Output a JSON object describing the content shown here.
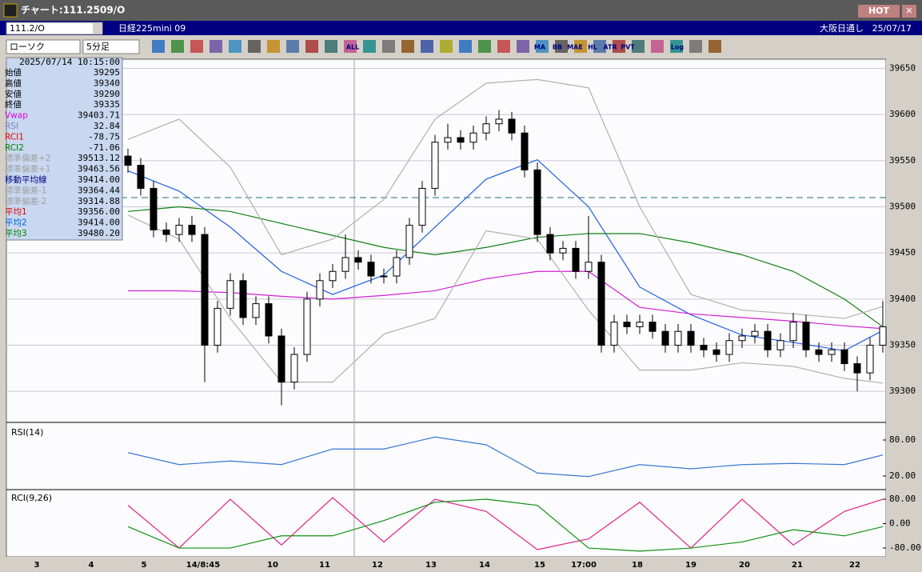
{
  "window": {
    "title": "チャート:111.2509/O",
    "hot": "HOT",
    "symbol": "111.2/O",
    "instrument": "日経225mini 09",
    "session": "大阪日通し",
    "date": "25/07/17",
    "chart_kind": "ローソク",
    "interval": "5分足",
    "toolbar_labels": [
      "ALL",
      "MA",
      "BB",
      "MAE",
      "HL",
      "ATR",
      "PVT",
      "Log"
    ]
  },
  "info": {
    "datetime": "2025/07/14 10:15:00",
    "labels": [
      "始値",
      "高値",
      "安値",
      "終値",
      "Vwap",
      "RSI",
      "RCI1",
      "RCI2",
      "標準偏差+2",
      "標準偏差+1",
      "移動平均線",
      "標準偏差-1",
      "標準偏差-2",
      "平均1",
      "平均2",
      "平均3"
    ],
    "values": [
      "39295",
      "39340",
      "39290",
      "39335",
      "39403.71",
      "32.84",
      "-78.75",
      "-71.06",
      "39513.12",
      "39463.56",
      "39414.00",
      "39364.44",
      "39314.88",
      "39356.00",
      "39414.00",
      "39480.20"
    ],
    "colors": [
      "#000",
      "#000",
      "#000",
      "#000",
      "#e000e0",
      "#8080c0",
      "#e00000",
      "#008000",
      "#a0a0a0",
      "#a0a0a0",
      "#000080",
      "#a0a0a0",
      "#a0a0a0",
      "#e00000",
      "#0060e0",
      "#008000"
    ]
  },
  "chart": {
    "type": "candlestick",
    "ylim": [
      39275,
      39660
    ],
    "yticks": [
      39300,
      39350,
      39400,
      39450,
      39500,
      39550,
      39600,
      39650
    ],
    "hline": 39510,
    "x_labels": [
      "3",
      "4",
      "5",
      "14/8:45",
      "10",
      "11",
      "12",
      "13",
      "14",
      "15",
      "17:00",
      "18",
      "19",
      "20",
      "21",
      "22"
    ],
    "candles": {
      "open": [
        39555,
        39545,
        39520,
        39475,
        39470,
        39480,
        39470,
        39350,
        39390,
        39420,
        39380,
        39395,
        39360,
        39310,
        39340,
        39400,
        39420,
        39430,
        39445,
        39440,
        39425,
        39425,
        39445,
        39480,
        39520,
        39570,
        39575,
        39570,
        39580,
        39590,
        39595,
        39580,
        39540,
        39470,
        39450,
        39455,
        39430,
        39440,
        39350,
        39375,
        39370,
        39375,
        39365,
        39350,
        39365,
        39350,
        39345,
        39340,
        39355,
        39360,
        39365,
        39345,
        39355,
        39375,
        39345,
        39340,
        39345,
        39330,
        39320,
        39350
      ],
      "high": [
        39563,
        39553,
        39528,
        39483,
        39488,
        39490,
        39478,
        39398,
        39428,
        39428,
        39403,
        39403,
        39368,
        39348,
        39408,
        39428,
        39438,
        39470,
        39453,
        39448,
        39433,
        39453,
        39488,
        39528,
        39578,
        39590,
        39583,
        39588,
        39598,
        39605,
        39603,
        39588,
        39548,
        39478,
        39463,
        39463,
        39490,
        39448,
        39383,
        39383,
        39383,
        39383,
        39373,
        39373,
        39373,
        39358,
        39353,
        39363,
        39368,
        39373,
        39373,
        39363,
        39385,
        39383,
        39353,
        39353,
        39353,
        39338,
        39358,
        39398
      ],
      "low": [
        39537,
        39512,
        39467,
        39462,
        39462,
        39462,
        39310,
        39342,
        39382,
        39372,
        39372,
        39352,
        39285,
        39302,
        39332,
        39392,
        39412,
        39422,
        39432,
        39417,
        39417,
        39417,
        39437,
        39472,
        39512,
        39562,
        39562,
        39562,
        39572,
        39582,
        39572,
        39532,
        39462,
        39442,
        39442,
        39422,
        39422,
        39342,
        39342,
        39362,
        39362,
        39357,
        39342,
        39342,
        39342,
        39337,
        39332,
        39332,
        39347,
        39352,
        39337,
        39337,
        39347,
        39337,
        39332,
        39332,
        39322,
        39300,
        39312,
        39342
      ],
      "close": [
        39545,
        39520,
        39475,
        39470,
        39480,
        39470,
        39350,
        39390,
        39420,
        39380,
        39395,
        39360,
        39310,
        39340,
        39400,
        39420,
        39430,
        39445,
        39440,
        39425,
        39425,
        39445,
        39480,
        39520,
        39570,
        39575,
        39570,
        39580,
        39590,
        39595,
        39580,
        39540,
        39470,
        39450,
        39455,
        39430,
        39440,
        39350,
        39375,
        39370,
        39375,
        39365,
        39350,
        39365,
        39350,
        39345,
        39340,
        39355,
        39360,
        39365,
        39345,
        39355,
        39375,
        39345,
        39340,
        39345,
        39330,
        39320,
        39350,
        39370
      ]
    },
    "ind_x": [
      0,
      4,
      8,
      12,
      16,
      20,
      24,
      28,
      32,
      36,
      40,
      44,
      48,
      52,
      56,
      59
    ],
    "lines": [
      {
        "name": "平均2",
        "color": "#2060e0",
        "values": [
          39539,
          39517,
          39478,
          39430,
          39405,
          39426,
          39478,
          39530,
          39551,
          39500,
          39413,
          39383,
          39361,
          39353,
          39344,
          39366
        ]
      },
      {
        "name": "平均3",
        "color": "#108010",
        "values": [
          39495,
          39500,
          39495,
          39482,
          39469,
          39456,
          39448,
          39456,
          39467,
          39471,
          39471,
          39461,
          39448,
          39430,
          39400,
          39370
        ]
      },
      {
        "name": "Vwap",
        "color": "#d020d0",
        "values": [
          39409,
          39409,
          39407,
          39403,
          39400,
          39404,
          39409,
          39422,
          39430,
          39430,
          39391,
          39384,
          39380,
          39376,
          39371,
          39368
        ]
      },
      {
        "name": "標準偏差+2",
        "color": "#b0b0b0",
        "values": [
          39573,
          39595,
          39543,
          39448,
          39465,
          39508,
          39595,
          39634,
          39638,
          39629,
          39500,
          39405,
          39388,
          39384,
          39379,
          39392
        ]
      },
      {
        "name": "標準偏差-2",
        "color": "#b0b0b0",
        "values": [
          39491,
          39465,
          39379,
          39310,
          39310,
          39362,
          39379,
          39474,
          39465,
          39388,
          39323,
          39323,
          39331,
          39327,
          39314,
          39309
        ]
      }
    ]
  },
  "rsi": {
    "title": "RSI(14)",
    "ylim": [
      0,
      102
    ],
    "yticks": [
      {
        "value": 80,
        "label": "80.00"
      },
      {
        "value": 20,
        "label": "20.00"
      }
    ],
    "color": "#3a78d0",
    "values": [
      59,
      39,
      45,
      39,
      65,
      65,
      85,
      72,
      25,
      19,
      39,
      32,
      39,
      41,
      39,
      55
    ]
  },
  "rci": {
    "title": "RCI(9,26)",
    "ylim": [
      -93,
      101
    ],
    "yticks": [
      {
        "value": 80,
        "label": "80.00"
      },
      {
        "value": 0,
        "label": "0.00"
      },
      {
        "value": -80,
        "label": "-80.00"
      }
    ],
    "series": [
      {
        "name": "RCI1",
        "color": "#e0208a",
        "values": [
          60,
          -80,
          80,
          -70,
          85,
          -60,
          80,
          40,
          -85,
          -50,
          70,
          -80,
          80,
          -70,
          40,
          80
        ]
      },
      {
        "name": "RCI2",
        "color": "#109010",
        "values": [
          -10,
          -80,
          -80,
          -40,
          -40,
          10,
          70,
          80,
          60,
          -80,
          -90,
          -80,
          -60,
          -20,
          -40,
          -10
        ]
      }
    ]
  }
}
